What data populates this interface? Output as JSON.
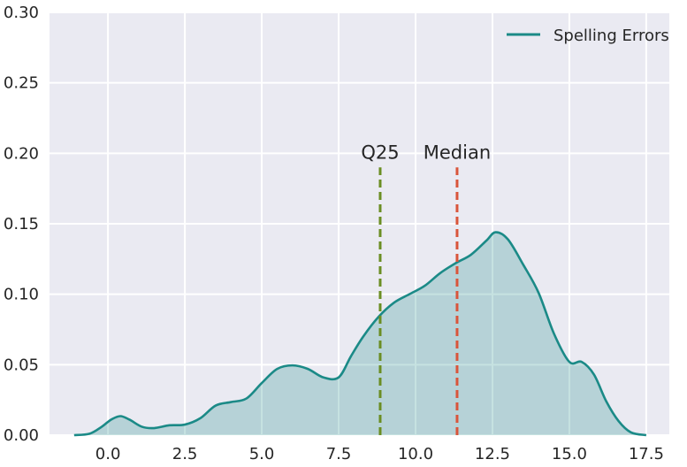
{
  "chart_data": {
    "type": "area",
    "title": "",
    "xlabel": "",
    "ylabel": "",
    "xlim": [
      -1.9,
      18.25
    ],
    "ylim": [
      0,
      0.3
    ],
    "xticks": [
      "0.0",
      "2.5",
      "5.0",
      "7.5",
      "10.0",
      "12.5",
      "15.0",
      "17.5"
    ],
    "yticks": [
      "0.00",
      "0.05",
      "0.10",
      "0.15",
      "0.20",
      "0.25",
      "0.30"
    ],
    "grid": true,
    "legend": {
      "position": "top-right"
    },
    "series": [
      {
        "name": "Spelling Errors",
        "color": "#1b8a87",
        "fill": true,
        "x": [
          -1.1,
          -0.6,
          -0.2,
          0.1,
          0.4,
          0.7,
          1.1,
          1.5,
          2.0,
          2.5,
          3.0,
          3.5,
          4.0,
          4.5,
          5.0,
          5.5,
          6.0,
          6.5,
          7.0,
          7.5,
          7.9,
          8.3,
          8.8,
          9.3,
          9.8,
          10.3,
          10.8,
          11.3,
          11.8,
          12.3,
          12.6,
          13.0,
          13.5,
          14.0,
          14.5,
          15.0,
          15.4,
          15.8,
          16.2,
          16.6,
          17.0,
          17.5
        ],
        "y": [
          0.0,
          0.001,
          0.006,
          0.011,
          0.0135,
          0.011,
          0.006,
          0.005,
          0.007,
          0.0075,
          0.012,
          0.021,
          0.0235,
          0.026,
          0.037,
          0.047,
          0.0495,
          0.047,
          0.041,
          0.041,
          0.056,
          0.07,
          0.084,
          0.094,
          0.1,
          0.106,
          0.115,
          0.122,
          0.128,
          0.138,
          0.144,
          0.139,
          0.121,
          0.101,
          0.072,
          0.052,
          0.052,
          0.043,
          0.024,
          0.01,
          0.002,
          0.0
        ]
      }
    ],
    "annotations": [
      {
        "label": "Q25",
        "x": 8.85,
        "y_top": 0.19,
        "color": "#6b8e23",
        "style": "dashed"
      },
      {
        "label": "Median",
        "x": 11.35,
        "y_top": 0.19,
        "color": "#d9553b",
        "style": "dashed"
      }
    ]
  }
}
